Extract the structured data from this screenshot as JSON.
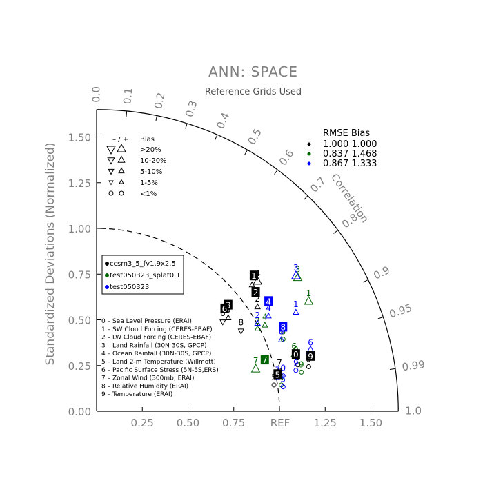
{
  "title": "ANN: SPACE",
  "subtitle": "Reference Grids Used",
  "chart_data": {
    "type": "scatter",
    "chart_kind": "taylor-diagram",
    "ylabel": "Standardized Deviations (Normalized)",
    "ref_label": "REF",
    "angular_label": "Correlation",
    "std_ticks": [
      {
        "value": 0.25,
        "label": "0.25"
      },
      {
        "value": 0.5,
        "label": "0.50"
      },
      {
        "value": 0.75,
        "label": "0.75"
      },
      {
        "value": 1.25,
        "label": "1.25"
      },
      {
        "value": 1.5,
        "label": "1.50"
      }
    ],
    "y_ticks": [
      {
        "value": 0.0,
        "label": "0.00"
      },
      {
        "value": 0.25,
        "label": "0.25"
      },
      {
        "value": 0.5,
        "label": "0.50"
      },
      {
        "value": 0.75,
        "label": "0.75"
      },
      {
        "value": 1.0,
        "label": "1.00"
      },
      {
        "value": 1.25,
        "label": "1.25"
      },
      {
        "value": 1.5,
        "label": "1.50"
      }
    ],
    "correlation_ticks": [
      {
        "value": 0.0,
        "label": "0.0"
      },
      {
        "value": 0.1,
        "label": "0.1"
      },
      {
        "value": 0.2,
        "label": "0.2"
      },
      {
        "value": 0.3,
        "label": "0.3"
      },
      {
        "value": 0.4,
        "label": "0.4"
      },
      {
        "value": 0.5,
        "label": "0.5"
      },
      {
        "value": 0.6,
        "label": "0.6"
      },
      {
        "value": 0.7,
        "label": "0.7"
      },
      {
        "value": 0.8,
        "label": "0.8"
      },
      {
        "value": 0.9,
        "label": "0.9"
      },
      {
        "value": 0.95,
        "label": "0.95"
      },
      {
        "value": 0.99,
        "label": "0.99"
      },
      {
        "value": 1.0,
        "label": "1.0"
      }
    ],
    "max_std": 1.65,
    "ref_std": 1.0,
    "bias_legend": {
      "header": [
        "– / +",
        "Bias"
      ],
      "rows": [
        {
          "label": ">20%",
          "size": 10
        },
        {
          "label": "10-20%",
          "size": 8
        },
        {
          "label": "5-10%",
          "size": 6.5
        },
        {
          "label": "1-5%",
          "size": 5
        },
        {
          "label": "<1%",
          "size": 0
        }
      ]
    },
    "rmse_table": {
      "header": "RMSE  Bias",
      "rows": [
        {
          "color": "#000000",
          "text": "1.000 1.000"
        },
        {
          "color": "#006400",
          "text": "0.837 1.468"
        },
        {
          "color": "#0000ff",
          "text": "0.867 1.333"
        }
      ]
    },
    "series": [
      {
        "name": "ccsm3_5_fv1.9x2.5",
        "color": "#000000"
      },
      {
        "name": "test050323_splat0.1",
        "color": "#006400"
      },
      {
        "name": "test050323",
        "color": "#0000ff"
      }
    ],
    "variables": [
      "0 – Sea Level Pressure (ERAI)",
      "1 – SW Cloud Forcing (CERES-EBAF)",
      "2 – LW Cloud Forcing (CERES-EBAF)",
      "3 – Land Rainfall (30N-30S, GPCP)",
      "4 – Ocean Rainfall (30N-30S, GPCP)",
      "5 – Land 2-m Temperature (Willmott)",
      "6 – Pacific Surface Stress (5N-5S,ERS)",
      "7 – Zonal Wind (300mb, ERAI)",
      "8 – Relative Humidity (ERAI)",
      "9 – Temperature (ERAI)"
    ],
    "points": [
      {
        "series": 0,
        "id": "0",
        "x": 1.1,
        "y": 0.28,
        "bias": "o"
      },
      {
        "series": 0,
        "id": "1",
        "x": 0.85,
        "y": 0.72,
        "bias": "t"
      },
      {
        "series": 0,
        "id": "2",
        "x": 0.88,
        "y": 0.6,
        "bias": "t"
      },
      {
        "series": 0,
        "id": "3",
        "x": 0.72,
        "y": 0.54,
        "bias": "t"
      },
      {
        "series": 0,
        "id": "4",
        "x": 0.88,
        "y": 0.74,
        "bias": "T"
      },
      {
        "series": 0,
        "id": "5",
        "x": 0.97,
        "y": 0.17,
        "bias": "o"
      },
      {
        "series": 0,
        "id": "6",
        "x": 0.69,
        "y": 0.52,
        "bias": "v"
      },
      {
        "series": 0,
        "id": "7",
        "x": 1.0,
        "y": 0.25,
        "bias": "o"
      },
      {
        "series": 0,
        "id": "8",
        "x": 0.79,
        "y": 0.47,
        "bias": "v"
      },
      {
        "series": 0,
        "id": "9",
        "x": 1.16,
        "y": 0.27,
        "bias": "o"
      },
      {
        "series": 1,
        "id": "0",
        "x": 1.09,
        "y": 0.32,
        "bias": "o"
      },
      {
        "series": 1,
        "id": "1",
        "x": 1.16,
        "y": 0.63,
        "bias": "T"
      },
      {
        "series": 1,
        "id": "2",
        "x": 0.88,
        "y": 0.48,
        "bias": "t"
      },
      {
        "series": 1,
        "id": "3",
        "x": 1.1,
        "y": 0.76,
        "bias": "T"
      },
      {
        "series": 1,
        "id": "4",
        "x": 0.92,
        "y": 0.5,
        "bias": "t"
      },
      {
        "series": 1,
        "id": "5",
        "x": 1.01,
        "y": 0.17,
        "bias": "o"
      },
      {
        "series": 1,
        "id": "6",
        "x": 1.08,
        "y": 0.34,
        "bias": "t"
      },
      {
        "series": 1,
        "id": "7",
        "x": 0.87,
        "y": 0.26,
        "bias": "T"
      },
      {
        "series": 1,
        "id": "8",
        "x": 1.02,
        "y": 0.42,
        "bias": "o"
      },
      {
        "series": 1,
        "id": "9",
        "x": 1.12,
        "y": 0.24,
        "bias": "o"
      },
      {
        "series": 2,
        "id": "0",
        "x": 1.02,
        "y": 0.22,
        "bias": "o"
      },
      {
        "series": 2,
        "id": "1",
        "x": 1.09,
        "y": 0.57,
        "bias": "t"
      },
      {
        "series": 2,
        "id": "2",
        "x": 0.88,
        "y": 0.51,
        "bias": "t"
      },
      {
        "series": 2,
        "id": "3",
        "x": 1.09,
        "y": 0.77,
        "bias": "T"
      },
      {
        "series": 2,
        "id": "4",
        "x": 0.94,
        "y": 0.55,
        "bias": "t"
      },
      {
        "series": 2,
        "id": "5",
        "x": 1.02,
        "y": 0.16,
        "bias": "o"
      },
      {
        "series": 2,
        "id": "6",
        "x": 1.17,
        "y": 0.36,
        "bias": "T"
      },
      {
        "series": 2,
        "id": "7",
        "x": 0.99,
        "y": 0.21,
        "bias": "o"
      },
      {
        "series": 2,
        "id": "8",
        "x": 1.01,
        "y": 0.42,
        "bias": "t"
      },
      {
        "series": 2,
        "id": "9",
        "x": 1.09,
        "y": 0.25,
        "bias": "o"
      }
    ],
    "boxed_labels": [
      {
        "series": 0,
        "id": "0",
        "x": 1.09,
        "y": 0.29
      },
      {
        "series": 0,
        "id": "1",
        "x": 0.86,
        "y": 0.72
      },
      {
        "series": 0,
        "id": "2",
        "x": 0.87,
        "y": 0.63
      },
      {
        "series": 0,
        "id": "3",
        "x": 0.72,
        "y": 0.56
      },
      {
        "series": 0,
        "id": "5",
        "x": 0.99,
        "y": 0.18
      },
      {
        "series": 0,
        "id": "6",
        "x": 0.7,
        "y": 0.54
      },
      {
        "series": 0,
        "id": "9",
        "x": 1.17,
        "y": 0.28
      },
      {
        "series": 1,
        "id": "7",
        "x": 0.92,
        "y": 0.26
      },
      {
        "series": 2,
        "id": "4",
        "x": 0.94,
        "y": 0.58
      },
      {
        "series": 2,
        "id": "8",
        "x": 1.02,
        "y": 0.44
      }
    ]
  }
}
